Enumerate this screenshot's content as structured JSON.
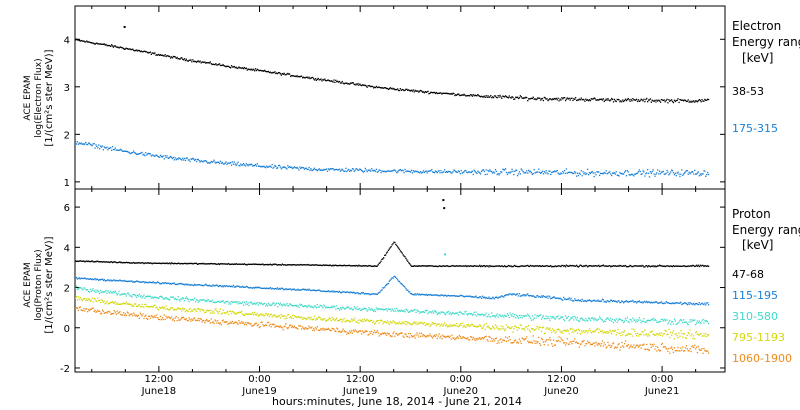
{
  "figure": {
    "xlabel": "hours:minutes, June 18, 2014 - June 21, 2014",
    "x_ticks": [
      {
        "hour": 12,
        "time": "12:00",
        "date": "June18"
      },
      {
        "hour": 24,
        "time": "0:00",
        "date": "June19"
      },
      {
        "hour": 36,
        "time": "12:00",
        "date": "June19"
      },
      {
        "hour": 48,
        "time": "0:00",
        "date": "June20"
      },
      {
        "hour": 60,
        "time": "12:00",
        "date": "June20"
      },
      {
        "hour": 72,
        "time": "0:00",
        "date": "June21"
      }
    ],
    "xlim_hours_from_June18": [
      2.0,
      79.5
    ]
  },
  "chart_data": [
    {
      "type": "scatter",
      "panel": "electron",
      "ylabel": [
        "ACE EPAM",
        "log(Electron Flux)",
        "[1/(cm²s ster MeV)]"
      ],
      "ylim": [
        0.85,
        4.7
      ],
      "yticks": [
        1,
        2,
        3,
        4
      ],
      "ytick_labels": [
        "1",
        "2",
        "3",
        "4"
      ],
      "legend_title": [
        "Electron",
        "Energy ranges",
        "[keV]"
      ],
      "series": [
        {
          "name": "38-53",
          "color": "#000000",
          "x_hours": [
            2,
            8,
            14,
            20,
            26,
            32,
            38,
            44,
            50,
            56,
            62,
            68,
            74,
            77.5
          ],
          "y": [
            4.0,
            3.82,
            3.62,
            3.45,
            3.3,
            3.15,
            3.0,
            2.9,
            2.82,
            2.77,
            2.75,
            2.73,
            2.72,
            2.72
          ],
          "outliers": [
            {
              "x_hours": 7.8,
              "y": 4.28
            }
          ]
        },
        {
          "name": "175-315",
          "color": "#1a7fd6",
          "x_hours": [
            2,
            8,
            14,
            20,
            26,
            32,
            38,
            44,
            50,
            56,
            62,
            68,
            74,
            77.5
          ],
          "y": [
            1.85,
            1.65,
            1.5,
            1.4,
            1.32,
            1.27,
            1.25,
            1.23,
            1.22,
            1.22,
            1.2,
            1.2,
            1.2,
            1.2
          ]
        }
      ]
    },
    {
      "type": "scatter",
      "panel": "proton",
      "ylabel": [
        "ACE EPAM",
        "log(Proton Flux)",
        "[1/(cm²s ster MeV)]"
      ],
      "ylim": [
        -2.2,
        6.9
      ],
      "yticks": [
        -2,
        0,
        2,
        4,
        6
      ],
      "ytick_labels": [
        "-2",
        "0",
        "2",
        "4",
        "6"
      ],
      "legend_title": [
        "Proton",
        "Energy ranges",
        "[keV]"
      ],
      "series": [
        {
          "name": "47-68",
          "color": "#000000",
          "x_hours": [
            2,
            10,
            20,
            30,
            38,
            40,
            42,
            50,
            60,
            70,
            77.5
          ],
          "y": [
            3.35,
            3.25,
            3.2,
            3.15,
            3.1,
            4.3,
            3.1,
            3.1,
            3.1,
            3.1,
            3.1
          ],
          "outliers": [
            {
              "x_hours": 45.8,
              "y": 6.4
            },
            {
              "x_hours": 45.9,
              "y": 6.0
            }
          ]
        },
        {
          "name": "115-195",
          "color": "#1a7fd6",
          "x_hours": [
            2,
            10,
            20,
            30,
            38,
            40,
            42,
            48,
            52,
            54,
            62,
            70,
            77.5
          ],
          "y": [
            2.5,
            2.3,
            2.1,
            1.9,
            1.7,
            2.6,
            1.7,
            1.6,
            1.5,
            1.7,
            1.4,
            1.3,
            1.2
          ]
        },
        {
          "name": "310-580",
          "color": "#3fd9c8",
          "x_hours": [
            2,
            10,
            20,
            30,
            40,
            50,
            60,
            70,
            77.5
          ],
          "y": [
            2.0,
            1.6,
            1.3,
            1.1,
            0.9,
            0.7,
            0.5,
            0.4,
            0.3
          ],
          "outliers": [
            {
              "x_hours": 46.0,
              "y": 3.7
            }
          ]
        },
        {
          "name": "795-1193",
          "color": "#d2d70a",
          "x_hours": [
            2,
            10,
            20,
            30,
            40,
            50,
            60,
            70,
            77.5
          ],
          "y": [
            1.5,
            1.1,
            0.8,
            0.5,
            0.3,
            0.1,
            -0.1,
            -0.25,
            -0.35
          ]
        },
        {
          "name": "1060-1900",
          "color": "#ee8a1a",
          "x_hours": [
            2,
            10,
            20,
            30,
            40,
            50,
            60,
            70,
            77.5
          ],
          "y": [
            1.0,
            0.6,
            0.3,
            0.0,
            -0.3,
            -0.5,
            -0.7,
            -0.9,
            -1.1
          ]
        }
      ]
    }
  ]
}
